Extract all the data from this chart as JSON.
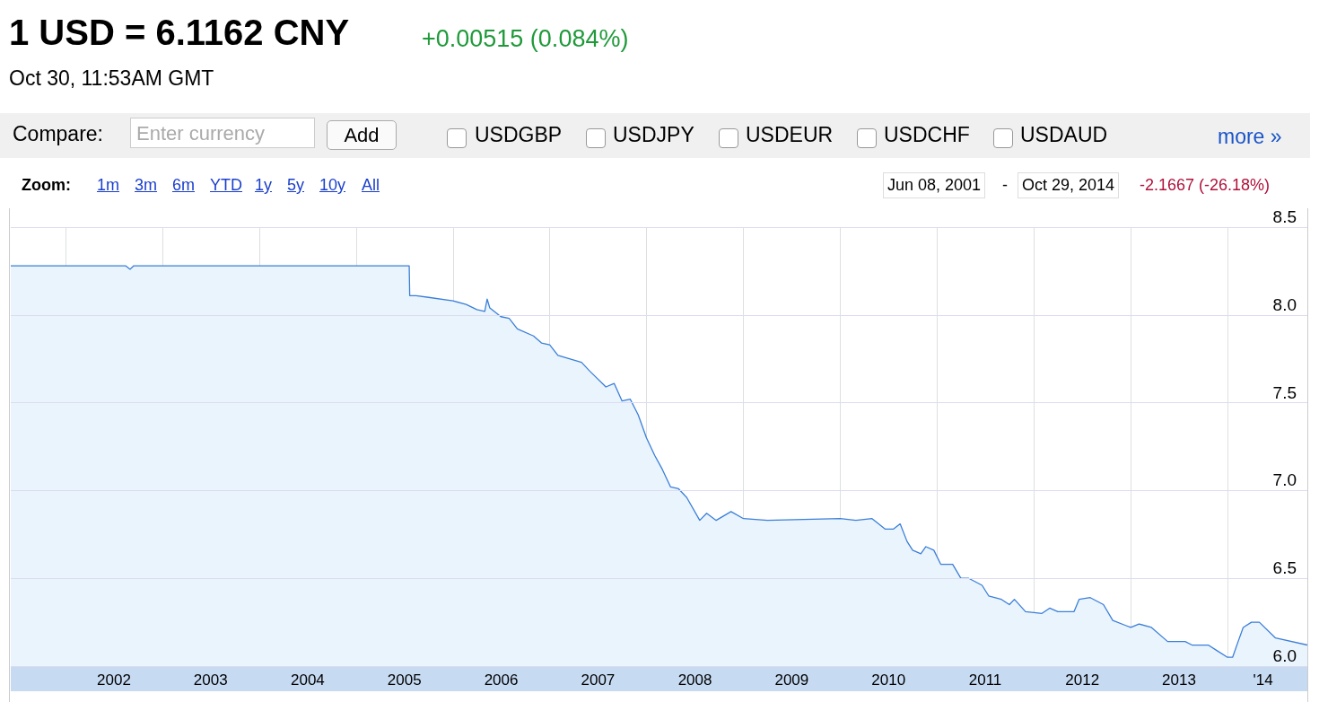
{
  "chart_data": {
    "type": "area",
    "title": "1 USD = 6.1162 CNY",
    "subtitle": "Oct 30, 11:53AM GMT",
    "annotations": [
      "+0.00515 (0.084%)",
      "Compare:",
      "Enter currency",
      "Add",
      "USDGBP",
      "USDJPY",
      "USDEUR",
      "USDCHF",
      "USDAUD",
      "more »",
      "Zoom:",
      "1m",
      "3m",
      "6m",
      "YTD",
      "1y",
      "5y",
      "10y",
      "All",
      "Jun 08, 2001",
      "-",
      "Oct 29, 2014",
      "-2.1667 (-26.18%)"
    ],
    "x": [
      "2001-06-08",
      "2002-03-01",
      "2002-08-15",
      "2002-09-01",
      "2002-09-15",
      "2003-06-01",
      "2004-06-01",
      "2005-07-20",
      "2005-07-22",
      "2005-08-15",
      "2005-10-01",
      "2006-01-01",
      "2006-02-20",
      "2006-04-01",
      "2006-05-01",
      "2006-05-10",
      "2006-05-20",
      "2006-07-01",
      "2006-08-01",
      "2006-09-01",
      "2006-11-01",
      "2006-12-01",
      "2007-01-01",
      "2007-02-01",
      "2007-05-01",
      "2007-06-01",
      "2007-08-01",
      "2007-09-01",
      "2007-10-01",
      "2007-11-01",
      "2007-12-01",
      "2008-01-01",
      "2008-02-01",
      "2008-03-01",
      "2008-04-01",
      "2008-05-01",
      "2008-06-01",
      "2008-07-20",
      "2008-08-15",
      "2008-09-20",
      "2008-11-15",
      "2009-01-01",
      "2009-04-01",
      "2010-01-01",
      "2010-03-01",
      "2010-05-01",
      "2010-06-20",
      "2010-07-20",
      "2010-08-15",
      "2010-09-10",
      "2010-10-01",
      "2010-11-01",
      "2010-11-20",
      "2010-12-20",
      "2011-01-15",
      "2011-03-01",
      "2011-04-01",
      "2011-05-01",
      "2011-06-20",
      "2011-07-15",
      "2011-09-01",
      "2011-10-01",
      "2011-10-20",
      "2011-12-01",
      "2012-02-01",
      "2012-03-01",
      "2012-04-01",
      "2012-06-01",
      "2012-06-20",
      "2012-08-01",
      "2012-09-20",
      "2012-10-25",
      "2012-12-15",
      "2013-01-01",
      "2013-02-01",
      "2013-03-20",
      "2013-05-20",
      "2013-07-25",
      "2013-08-20",
      "2013-10-20",
      "2013-11-20",
      "2014-01-01",
      "2014-01-20",
      "2014-02-10",
      "2014-03-01",
      "2014-04-01",
      "2014-05-01",
      "2014-07-01",
      "2014-10-29"
    ],
    "series": [
      {
        "color": "#3a7fd8",
        "values": [
          8.28,
          8.28,
          8.28,
          8.26,
          8.28,
          8.28,
          8.28,
          8.28,
          8.11,
          8.11,
          8.1,
          8.08,
          8.06,
          8.03,
          8.02,
          8.09,
          8.04,
          7.99,
          7.98,
          7.92,
          7.88,
          7.84,
          7.83,
          7.77,
          7.73,
          7.68,
          7.59,
          7.61,
          7.51,
          7.52,
          7.43,
          7.3,
          7.2,
          7.12,
          7.02,
          7.01,
          6.96,
          6.83,
          6.87,
          6.83,
          6.88,
          6.84,
          6.83,
          6.84,
          6.83,
          6.84,
          6.78,
          6.78,
          6.81,
          6.71,
          6.66,
          6.64,
          6.68,
          6.66,
          6.58,
          6.58,
          6.5,
          6.5,
          6.46,
          6.4,
          6.38,
          6.35,
          6.38,
          6.31,
          6.3,
          6.33,
          6.31,
          6.31,
          6.38,
          6.39,
          6.35,
          6.26,
          6.23,
          6.22,
          6.24,
          6.22,
          6.14,
          6.14,
          6.12,
          6.12,
          6.09,
          6.05,
          6.05,
          6.14,
          6.22,
          6.25,
          6.25,
          6.16,
          6.12
        ]
      }
    ],
    "xlim": [
      "2001-06-08",
      "2014-10-29"
    ],
    "xticks": [
      {
        "value": "2002-01-01",
        "label": null
      },
      {
        "value": "2002-07-02",
        "label": "2002"
      },
      {
        "value": "2003-01-01",
        "label": null
      },
      {
        "value": "2003-07-02",
        "label": "2003"
      },
      {
        "value": "2004-01-01",
        "label": null
      },
      {
        "value": "2004-07-02",
        "label": "2004"
      },
      {
        "value": "2005-01-01",
        "label": null
      },
      {
        "value": "2005-07-02",
        "label": "2005"
      },
      {
        "value": "2006-01-01",
        "label": null
      },
      {
        "value": "2006-07-02",
        "label": "2006"
      },
      {
        "value": "2007-01-01",
        "label": null
      },
      {
        "value": "2007-07-02",
        "label": "2007"
      },
      {
        "value": "2008-01-01",
        "label": null
      },
      {
        "value": "2008-07-02",
        "label": "2008"
      },
      {
        "value": "2009-01-01",
        "label": null
      },
      {
        "value": "2009-07-02",
        "label": "2009"
      },
      {
        "value": "2010-01-01",
        "label": null
      },
      {
        "value": "2010-07-02",
        "label": "2010"
      },
      {
        "value": "2011-01-01",
        "label": null
      },
      {
        "value": "2011-07-02",
        "label": "2011"
      },
      {
        "value": "2012-01-01",
        "label": null
      },
      {
        "value": "2012-07-02",
        "label": "2012"
      },
      {
        "value": "2013-01-01",
        "label": null
      },
      {
        "value": "2013-07-02",
        "label": "2013"
      },
      {
        "value": "2014-01-01",
        "label": null
      },
      {
        "value": "2014-05-15",
        "label": "'14"
      }
    ],
    "ylim": [
      6.0,
      8.5
    ],
    "yticks": [
      {
        "value": 6,
        "label": "6.0"
      },
      {
        "value": 6.5,
        "label": "6.5"
      },
      {
        "value": 7,
        "label": "7.0"
      },
      {
        "value": 7.5,
        "label": "7.5"
      },
      {
        "value": 8,
        "label": "8.0"
      },
      {
        "value": 8.5,
        "label": "8.5"
      }
    ],
    "grid": true,
    "marker": "none",
    "line_style": "solid"
  }
}
